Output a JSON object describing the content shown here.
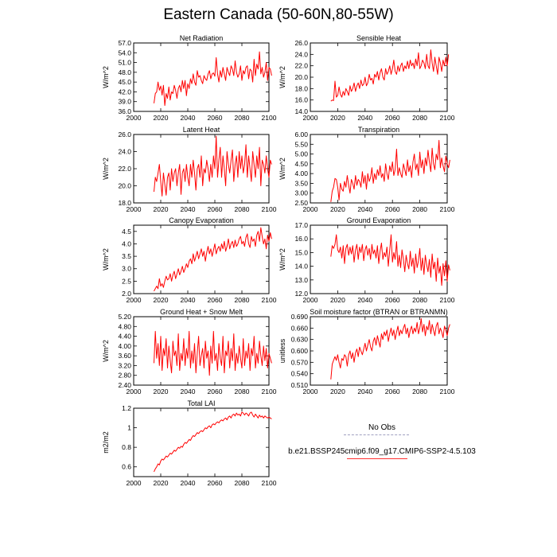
{
  "page": {
    "title": "Eastern Canada (50-60N,80-55W)"
  },
  "legend": {
    "obs_label": "No Obs",
    "model_label": "b.e21.BSSP245cmip6.f09_g17.CMIP6-SSP2-4.5.103",
    "model_color": "#ff0000",
    "obs_color": "#a0a0c0"
  },
  "chart_data": [
    {
      "type": "line",
      "title": "Net Radiation",
      "ylabel": "W/m^2",
      "xlim": [
        2000,
        2100
      ],
      "ylim": [
        36.0,
        57.0
      ],
      "yticks": [
        36.0,
        39.0,
        42.0,
        45.0,
        48.0,
        51.0,
        54.0,
        57.0
      ],
      "xticks": [
        2000,
        2020,
        2040,
        2060,
        2080,
        2100
      ],
      "ytick_labels": [
        "36.0",
        "39.0",
        "42.0",
        "45.0",
        "48.0",
        "51.0",
        "54.0",
        "57.0"
      ],
      "xtick_labels": [
        "2000",
        "2020",
        "2040",
        "2060",
        "2080",
        "2100"
      ],
      "x_start": 2015,
      "values": [
        38.5,
        41.5,
        42.0,
        45.0,
        42.5,
        43.8,
        41.0,
        44.0,
        37.8,
        41.5,
        40.0,
        43.5,
        39.5,
        42.0,
        41.5,
        44.0,
        42.5,
        40.0,
        43.0,
        44.0,
        42.0,
        45.5,
        43.0,
        45.5,
        40.8,
        44.5,
        43.0,
        46.0,
        44.5,
        47.5,
        45.0,
        44.0,
        48.5,
        46.5,
        47.0,
        45.5,
        44.5,
        47.0,
        46.0,
        45.5,
        47.5,
        48.5,
        46.0,
        47.5,
        47.8,
        46.8,
        52.5,
        47.5,
        45.0,
        48.5,
        46.5,
        49.5,
        47.5,
        45.5,
        49.5,
        48.0,
        47.0,
        50.0,
        49.0,
        47.0,
        51.5,
        48.0,
        46.5,
        47.5,
        50.0,
        45.5,
        48.5,
        47.5,
        49.5,
        50.0,
        46.0,
        49.0,
        48.5,
        45.0,
        52.0,
        47.0,
        50.5,
        49.0,
        54.3,
        47.5,
        49.5,
        46.5,
        48.0,
        51.0,
        45.5,
        49.5,
        49.0,
        47.0
      ]
    },
    {
      "type": "line",
      "title": "Sensible Heat",
      "ylabel": "W/m^2",
      "xlim": [
        2000,
        2100
      ],
      "ylim": [
        14.0,
        26.0
      ],
      "yticks": [
        14.0,
        16.0,
        18.0,
        20.0,
        22.0,
        24.0,
        26.0
      ],
      "xticks": [
        2000,
        2020,
        2040,
        2060,
        2080,
        2100
      ],
      "ytick_labels": [
        "14.0",
        "16.0",
        "18.0",
        "20.0",
        "22.0",
        "24.0",
        "26.0"
      ],
      "xtick_labels": [
        "2000",
        "2020",
        "2040",
        "2060",
        "2080",
        "2100"
      ],
      "x_start": 2015,
      "values": [
        15.8,
        16.0,
        15.9,
        19.3,
        16.5,
        16.8,
        18.3,
        17.0,
        16.5,
        17.5,
        16.8,
        18.0,
        17.5,
        16.8,
        18.5,
        17.5,
        18.0,
        19.0,
        17.5,
        18.5,
        19.0,
        18.0,
        19.5,
        18.5,
        18.8,
        20.0,
        18.5,
        19.0,
        20.5,
        19.5,
        19.8,
        18.8,
        20.5,
        20.0,
        21.0,
        19.5,
        20.8,
        21.5,
        20.0,
        19.5,
        21.5,
        20.5,
        21.0,
        22.0,
        20.5,
        21.5,
        23.0,
        21.0,
        20.5,
        22.0,
        21.0,
        22.0,
        22.5,
        21.0,
        22.0,
        21.5,
        22.8,
        21.5,
        23.0,
        22.0,
        22.5,
        21.5,
        23.2,
        22.0,
        24.3,
        21.5,
        22.0,
        23.0,
        22.5,
        21.5,
        24.0,
        22.0,
        21.5,
        24.8,
        22.5,
        21.0,
        23.5,
        22.0,
        20.5,
        23.5,
        22.5,
        21.0,
        23.0,
        22.0,
        23.5,
        22.0,
        24.0
      ]
    },
    {
      "type": "line",
      "title": "Latent Heat",
      "ylabel": "W/m^2",
      "xlim": [
        2000,
        2100
      ],
      "ylim": [
        18.0,
        26.0
      ],
      "yticks": [
        18.0,
        20.0,
        22.0,
        24.0,
        26.0
      ],
      "xticks": [
        2000,
        2020,
        2040,
        2060,
        2080,
        2100
      ],
      "ytick_labels": [
        "18.0",
        "20.0",
        "22.0",
        "24.0",
        "26.0"
      ],
      "xtick_labels": [
        "2000",
        "2020",
        "2040",
        "2060",
        "2080",
        "2100"
      ],
      "x_start": 2015,
      "values": [
        19.3,
        21.0,
        20.5,
        21.5,
        22.5,
        20.5,
        18.8,
        21.5,
        20.2,
        18.9,
        21.0,
        21.5,
        19.5,
        22.0,
        20.5,
        21.5,
        22.0,
        20.0,
        21.5,
        22.5,
        19.0,
        21.5,
        22.0,
        20.5,
        22.5,
        21.0,
        20.0,
        22.5,
        21.0,
        23.0,
        21.5,
        19.5,
        22.0,
        22.5,
        21.0,
        23.5,
        20.0,
        22.0,
        21.5,
        23.0,
        22.0,
        20.5,
        22.5,
        21.0,
        23.5,
        22.0,
        25.8,
        21.0,
        23.0,
        24.5,
        21.0,
        23.5,
        22.0,
        20.0,
        24.0,
        22.5,
        21.5,
        23.0,
        24.2,
        20.5,
        22.5,
        23.5,
        21.0,
        24.0,
        22.0,
        23.5,
        21.5,
        22.5,
        24.8,
        21.0,
        23.5,
        22.0,
        20.5,
        24.0,
        22.5,
        21.0,
        23.5,
        22.0,
        24.5,
        20.0,
        23.0,
        22.5,
        21.5,
        23.5,
        22.0,
        21.0,
        23.0,
        22.5
      ]
    },
    {
      "type": "line",
      "title": "Transpiration",
      "ylabel": "W/m^2",
      "xlim": [
        2000,
        2100
      ],
      "ylim": [
        2.5,
        6.0
      ],
      "yticks": [
        2.5,
        3.0,
        3.5,
        4.0,
        4.5,
        5.0,
        5.5,
        6.0
      ],
      "xticks": [
        2000,
        2020,
        2040,
        2060,
        2080,
        2100
      ],
      "ytick_labels": [
        "2.50",
        "3.00",
        "3.50",
        "4.00",
        "4.50",
        "5.00",
        "5.50",
        "6.00"
      ],
      "xtick_labels": [
        "2000",
        "2020",
        "2040",
        "2060",
        "2080",
        "2100"
      ],
      "x_start": 2015,
      "values": [
        2.55,
        3.1,
        3.3,
        3.75,
        3.7,
        3.3,
        2.65,
        3.5,
        3.2,
        3.1,
        3.6,
        3.3,
        3.9,
        3.4,
        3.0,
        3.7,
        3.5,
        3.2,
        3.9,
        3.4,
        3.7,
        3.6,
        3.3,
        4.1,
        3.5,
        3.9,
        3.2,
        4.0,
        3.6,
        3.8,
        4.3,
        3.5,
        4.0,
        3.7,
        4.2,
        3.9,
        4.4,
        3.8,
        4.0,
        3.6,
        4.5,
        4.0,
        3.7,
        4.4,
        4.1,
        4.6,
        3.9,
        4.2,
        5.25,
        3.9,
        4.3,
        4.0,
        3.8,
        4.5,
        4.2,
        3.9,
        4.7,
        4.1,
        4.4,
        3.8,
        4.6,
        5.0,
        4.2,
        4.5,
        3.9,
        5.1,
        4.3,
        4.7,
        4.0,
        4.8,
        4.4,
        5.2,
        4.6,
        4.1,
        5.3,
        4.5,
        4.2,
        5.0,
        4.7,
        5.7,
        4.3,
        4.8,
        4.4,
        4.1,
        4.9,
        4.5,
        4.3,
        4.7
      ]
    },
    {
      "type": "line",
      "title": "Canopy Evaporation",
      "ylabel": "W/m^2",
      "xlim": [
        2000,
        2100
      ],
      "ylim": [
        2.0,
        4.75
      ],
      "yticks": [
        2.0,
        2.5,
        3.0,
        3.5,
        4.0,
        4.5
      ],
      "xticks": [
        2000,
        2020,
        2040,
        2060,
        2080,
        2100
      ],
      "ytick_labels": [
        "2.0",
        "2.5",
        "3.0",
        "3.5",
        "4.0",
        "4.5"
      ],
      "xtick_labels": [
        "2000",
        "2020",
        "2040",
        "2060",
        "2080",
        "2100"
      ],
      "x_start": 2015,
      "values": [
        2.1,
        2.2,
        2.3,
        2.2,
        2.6,
        2.3,
        2.4,
        2.25,
        2.5,
        2.7,
        2.55,
        2.6,
        2.8,
        2.5,
        2.75,
        2.9,
        2.6,
        2.8,
        3.0,
        2.75,
        2.9,
        3.1,
        2.85,
        3.0,
        3.2,
        3.05,
        3.3,
        3.4,
        3.2,
        3.6,
        3.3,
        3.5,
        3.7,
        3.4,
        3.6,
        3.8,
        3.5,
        3.7,
        3.3,
        3.65,
        3.9,
        3.6,
        3.8,
        3.5,
        3.75,
        4.0,
        3.6,
        3.8,
        3.9,
        3.7,
        4.0,
        3.8,
        4.1,
        3.7,
        3.9,
        4.2,
        3.8,
        4.0,
        4.1,
        3.85,
        4.15,
        3.9,
        4.0,
        4.2,
        4.3,
        4.0,
        4.1,
        3.9,
        4.25,
        4.4,
        4.0,
        3.85,
        4.3,
        4.1,
        4.2,
        3.9,
        4.35,
        4.5,
        4.1,
        4.65,
        4.3,
        4.0,
        4.2,
        3.8,
        4.35,
        4.1,
        4.45,
        4.2
      ]
    },
    {
      "type": "line",
      "title": "Ground Evaporation",
      "ylabel": "W/m^2",
      "xlim": [
        2000,
        2100
      ],
      "ylim": [
        12.0,
        17.0
      ],
      "yticks": [
        12.0,
        13.0,
        14.0,
        15.0,
        16.0,
        17.0
      ],
      "xticks": [
        2000,
        2020,
        2040,
        2060,
        2080,
        2100
      ],
      "ytick_labels": [
        "12.0",
        "13.0",
        "14.0",
        "15.0",
        "16.0",
        "17.0"
      ],
      "xtick_labels": [
        "2000",
        "2020",
        "2040",
        "2060",
        "2080",
        "2100"
      ],
      "x_start": 2015,
      "values": [
        14.7,
        15.5,
        15.3,
        15.6,
        16.3,
        15.2,
        15.0,
        15.4,
        14.6,
        15.5,
        14.2,
        15.3,
        15.6,
        14.8,
        15.4,
        14.9,
        15.5,
        14.3,
        15.2,
        15.6,
        14.5,
        15.4,
        15.0,
        15.6,
        14.4,
        15.2,
        15.5,
        14.8,
        15.3,
        14.5,
        15.6,
        14.9,
        15.2,
        14.6,
        15.5,
        14.2,
        15.1,
        15.7,
        14.5,
        15.0,
        14.7,
        15.4,
        14.0,
        15.2,
        16.3,
        14.3,
        15.0,
        14.5,
        15.8,
        14.0,
        14.8,
        13.9,
        15.2,
        14.5,
        13.6,
        14.8,
        14.2,
        13.8,
        15.1,
        14.0,
        14.6,
        13.5,
        14.9,
        13.9,
        14.4,
        15.3,
        13.7,
        14.6,
        13.4,
        14.8,
        14.1,
        13.6,
        14.5,
        13.2,
        14.9,
        13.8,
        14.3,
        12.9,
        14.6,
        13.5,
        14.0,
        12.6,
        14.2,
        13.3,
        14.4,
        12.9,
        14.1,
        13.7
      ]
    },
    {
      "type": "line",
      "title": "Ground Heat + Snow Melt",
      "ylabel": "W/m^2",
      "xlim": [
        2000,
        2100
      ],
      "ylim": [
        2.4,
        5.2
      ],
      "yticks": [
        2.4,
        2.8,
        3.2,
        3.6,
        4.0,
        4.4,
        4.8,
        5.2
      ],
      "xticks": [
        2000,
        2020,
        2040,
        2060,
        2080,
        2100
      ],
      "ytick_labels": [
        "2.40",
        "2.80",
        "3.20",
        "3.60",
        "4.00",
        "4.40",
        "4.80",
        "5.20"
      ],
      "xtick_labels": [
        "2000",
        "2020",
        "2040",
        "2060",
        "2080",
        "2100"
      ],
      "x_start": 2015,
      "values": [
        3.3,
        4.6,
        3.5,
        4.1,
        3.2,
        4.4,
        3.0,
        3.9,
        3.6,
        4.3,
        3.1,
        4.0,
        3.4,
        2.9,
        4.2,
        3.6,
        3.8,
        3.2,
        4.5,
        3.0,
        3.7,
        3.4,
        4.3,
        3.2,
        3.9,
        3.5,
        4.6,
        3.1,
        3.8,
        3.3,
        4.1,
        2.9,
        3.7,
        4.4,
        3.2,
        3.6,
        3.9,
        3.1,
        4.2,
        3.5,
        3.8,
        2.8,
        4.0,
        3.3,
        4.6,
        3.4,
        3.7,
        3.0,
        4.1,
        3.5,
        3.2,
        4.4,
        2.9,
        3.8,
        3.6,
        4.2,
        3.1,
        3.9,
        3.4,
        4.5,
        3.0,
        3.7,
        3.3,
        4.0,
        3.5,
        3.1,
        4.3,
        3.2,
        3.8,
        3.5,
        4.1,
        3.0,
        3.9,
        3.6,
        4.4,
        3.1,
        3.7,
        3.3,
        4.2,
        3.6,
        3.2,
        4.0,
        3.4,
        3.9,
        3.1,
        3.7,
        3.5,
        3.3
      ]
    },
    {
      "type": "line",
      "title": "Soil moisture factor (BTRAN or BTRANMN)",
      "ylabel": "unitless",
      "xlim": [
        2000,
        2100
      ],
      "ylim": [
        0.51,
        0.69
      ],
      "yticks": [
        0.51,
        0.54,
        0.57,
        0.6,
        0.63,
        0.66,
        0.69
      ],
      "xticks": [
        2000,
        2020,
        2040,
        2060,
        2080,
        2100
      ],
      "ytick_labels": [
        "0.510",
        "0.540",
        "0.570",
        "0.600",
        "0.630",
        "0.660",
        "0.690"
      ],
      "xtick_labels": [
        "2000",
        "2020",
        "2040",
        "2060",
        "2080",
        "2100"
      ],
      "x_start": 2015,
      "values": [
        0.525,
        0.565,
        0.575,
        0.585,
        0.575,
        0.59,
        0.57,
        0.555,
        0.58,
        0.575,
        0.59,
        0.585,
        0.56,
        0.59,
        0.6,
        0.58,
        0.595,
        0.57,
        0.595,
        0.605,
        0.585,
        0.61,
        0.6,
        0.59,
        0.605,
        0.62,
        0.6,
        0.615,
        0.63,
        0.61,
        0.6,
        0.625,
        0.635,
        0.615,
        0.64,
        0.625,
        0.61,
        0.645,
        0.63,
        0.65,
        0.64,
        0.655,
        0.625,
        0.645,
        0.66,
        0.64,
        0.655,
        0.63,
        0.65,
        0.665,
        0.64,
        0.655,
        0.645,
        0.66,
        0.67,
        0.645,
        0.66,
        0.635,
        0.655,
        0.665,
        0.645,
        0.66,
        0.65,
        0.675,
        0.645,
        0.66,
        0.685,
        0.65,
        0.67,
        0.64,
        0.665,
        0.655,
        0.68,
        0.645,
        0.67,
        0.655,
        0.64,
        0.665,
        0.675,
        0.645,
        0.66,
        0.65,
        0.635,
        0.665,
        0.655,
        0.64,
        0.66,
        0.67
      ]
    },
    {
      "type": "line",
      "title": "Total LAI",
      "ylabel": "m2/m2",
      "xlim": [
        2000,
        2100
      ],
      "ylim": [
        0.5,
        1.2
      ],
      "yticks": [
        0.6,
        0.8,
        1.0,
        1.2
      ],
      "xticks": [
        2000,
        2020,
        2040,
        2060,
        2080,
        2100
      ],
      "ytick_labels": [
        "0.6",
        "0.8",
        "1",
        "1.2"
      ],
      "xtick_labels": [
        "2000",
        "2020",
        "2040",
        "2060",
        "2080",
        "2100"
      ],
      "x_start": 2015,
      "values": [
        0.55,
        0.58,
        0.6,
        0.63,
        0.62,
        0.66,
        0.68,
        0.67,
        0.69,
        0.71,
        0.7,
        0.72,
        0.74,
        0.73,
        0.75,
        0.77,
        0.76,
        0.78,
        0.8,
        0.79,
        0.81,
        0.8,
        0.83,
        0.85,
        0.84,
        0.86,
        0.88,
        0.87,
        0.9,
        0.92,
        0.91,
        0.93,
        0.95,
        0.94,
        0.96,
        0.97,
        0.96,
        0.98,
        1.0,
        0.99,
        1.01,
        1.02,
        1.0,
        1.03,
        1.04,
        1.03,
        1.05,
        1.06,
        1.05,
        1.07,
        1.08,
        1.07,
        1.09,
        1.1,
        1.08,
        1.11,
        1.12,
        1.1,
        1.13,
        1.14,
        1.12,
        1.15,
        1.13,
        1.14,
        1.12,
        1.16,
        1.15,
        1.13,
        1.15,
        1.14,
        1.12,
        1.15,
        1.16,
        1.13,
        1.11,
        1.14,
        1.12,
        1.1,
        1.13,
        1.11,
        1.12,
        1.1,
        1.12,
        1.11,
        1.1,
        1.11,
        1.1,
        1.09
      ]
    }
  ]
}
